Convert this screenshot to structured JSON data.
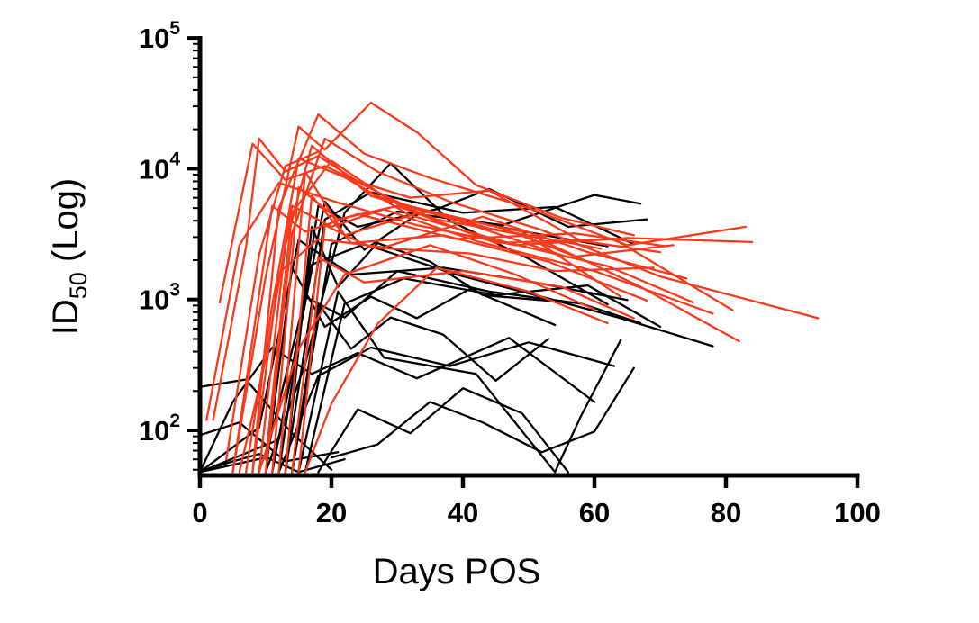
{
  "chart_data": {
    "type": "line",
    "title": "",
    "xlabel": "Days POS",
    "ylabel_parts": {
      "prefix": "ID",
      "sub": "50",
      "suffix": " (Log)"
    },
    "xlim": [
      0,
      100
    ],
    "ylim_log10": [
      1.656,
      5
    ],
    "x_ticks": [
      0,
      20,
      40,
      60,
      80,
      100
    ],
    "y_ticks": [
      {
        "value": 100,
        "base": "10",
        "exp": "2"
      },
      {
        "value": 1000,
        "base": "10",
        "exp": "3"
      },
      {
        "value": 10000,
        "base": "10",
        "exp": "4"
      },
      {
        "value": 100000,
        "base": "10",
        "exp": "5"
      }
    ],
    "y_minor_per_decade": [
      2,
      3,
      4,
      5,
      6,
      7,
      8,
      9
    ],
    "grid": false,
    "legend": "none",
    "colors": {
      "red": "#F83A1C",
      "black": "#000000"
    },
    "series": [
      {
        "group": "black",
        "points": [
          [
            10,
            48
          ],
          [
            16,
            320
          ],
          [
            22,
            4600
          ],
          [
            29,
            11000
          ],
          [
            38,
            4000
          ],
          [
            50,
            2050
          ],
          [
            62,
            920
          ]
        ]
      },
      {
        "group": "black",
        "points": [
          [
            12,
            48
          ],
          [
            18,
            5200
          ],
          [
            24,
            3600
          ],
          [
            36,
            4900
          ],
          [
            44,
            7000
          ],
          [
            56,
            3600
          ],
          [
            68,
            4100
          ]
        ]
      },
      {
        "group": "black",
        "points": [
          [
            13,
            48
          ],
          [
            19,
            4100
          ],
          [
            26,
            6600
          ],
          [
            40,
            4600
          ],
          [
            54,
            5100
          ],
          [
            66,
            2650
          ]
        ]
      },
      {
        "group": "black",
        "points": [
          [
            14,
            48
          ],
          [
            20,
            2650
          ],
          [
            30,
            4700
          ],
          [
            46,
            3700
          ],
          [
            60,
            6300
          ],
          [
            67,
            5400
          ]
        ]
      },
      {
        "group": "black",
        "points": [
          [
            11,
            48
          ],
          [
            17,
            1850
          ],
          [
            25,
            2650
          ],
          [
            39,
            1550
          ],
          [
            52,
            1050
          ],
          [
            64,
            720
          ],
          [
            78,
            440
          ]
        ]
      },
      {
        "group": "black",
        "points": [
          [
            0,
            48
          ],
          [
            9,
            105
          ],
          [
            15,
            2850
          ],
          [
            23,
            1550
          ],
          [
            37,
            1750
          ],
          [
            51,
            1350
          ],
          [
            65,
            990
          ]
        ]
      },
      {
        "group": "black",
        "points": [
          [
            16,
            48
          ],
          [
            22,
            930
          ],
          [
            31,
            1450
          ],
          [
            45,
            1080
          ],
          [
            59,
            1280
          ],
          [
            70,
            620
          ]
        ]
      },
      {
        "group": "black",
        "points": [
          [
            0,
            215
          ],
          [
            7,
            245
          ],
          [
            14,
            95
          ],
          [
            20,
            50
          ]
        ]
      },
      {
        "group": "black",
        "points": [
          [
            0,
            48
          ],
          [
            5,
            165
          ],
          [
            11,
            430
          ],
          [
            17,
            270
          ],
          [
            24,
            390
          ],
          [
            33,
            250
          ],
          [
            47,
            510
          ],
          [
            60,
            165
          ]
        ]
      },
      {
        "group": "black",
        "points": [
          [
            12,
            48
          ],
          [
            18,
            260
          ],
          [
            26,
            430
          ],
          [
            38,
            310
          ],
          [
            50,
            470
          ],
          [
            63,
            310
          ]
        ]
      },
      {
        "group": "black",
        "points": [
          [
            15,
            48
          ],
          [
            21,
            1150
          ],
          [
            28,
            360
          ],
          [
            42,
            270
          ],
          [
            54,
            48
          ],
          [
            58,
            130
          ],
          [
            64,
            490
          ]
        ]
      },
      {
        "group": "black",
        "points": [
          [
            0,
            48
          ],
          [
            10,
            62
          ],
          [
            16,
            1050
          ],
          [
            22,
            730
          ],
          [
            30,
            1650
          ],
          [
            44,
            1150
          ],
          [
            58,
            930
          ],
          [
            67,
            660
          ]
        ]
      },
      {
        "group": "black",
        "points": [
          [
            18,
            48
          ],
          [
            24,
            145
          ],
          [
            32,
            95
          ],
          [
            40,
            210
          ],
          [
            49,
            135
          ],
          [
            56,
            48
          ]
        ]
      },
      {
        "group": "black",
        "points": [
          [
            0,
            48
          ],
          [
            12,
            85
          ],
          [
            19,
            5600
          ],
          [
            25,
            2400
          ],
          [
            34,
            4800
          ],
          [
            48,
            3400
          ],
          [
            62,
            2550
          ]
        ]
      },
      {
        "group": "black",
        "points": [
          [
            13,
            48
          ],
          [
            17,
            3600
          ],
          [
            21,
            1250
          ],
          [
            27,
            2700
          ],
          [
            35,
            1950
          ],
          [
            43,
            1080
          ],
          [
            55,
            960
          ]
        ]
      },
      {
        "group": "black",
        "points": [
          [
            20,
            62
          ],
          [
            27,
            78
          ],
          [
            35,
            165
          ],
          [
            43,
            115
          ],
          [
            52,
            68
          ],
          [
            60,
            98
          ],
          [
            66,
            300
          ]
        ]
      },
      {
        "group": "black",
        "points": [
          [
            0,
            92
          ],
          [
            6,
            115
          ],
          [
            13,
            58
          ],
          [
            21,
            68
          ]
        ]
      },
      {
        "group": "black",
        "points": [
          [
            14,
            48
          ],
          [
            18,
            930
          ],
          [
            23,
            420
          ],
          [
            29,
            730
          ],
          [
            37,
            540
          ],
          [
            45,
            240
          ],
          [
            53,
            500
          ]
        ]
      },
      {
        "group": "black",
        "points": [
          [
            10,
            48
          ],
          [
            14,
            1750
          ],
          [
            19,
            620
          ],
          [
            26,
            1050
          ],
          [
            33,
            720
          ],
          [
            41,
            1200
          ],
          [
            54,
            640
          ]
        ]
      },
      {
        "group": "black",
        "points": [
          [
            0,
            48
          ],
          [
            4,
            56
          ],
          [
            9,
            66
          ],
          [
            15,
            48
          ],
          [
            22,
            60
          ]
        ]
      },
      {
        "group": "red",
        "points": [
          [
            2,
            120
          ],
          [
            7,
            2500
          ],
          [
            9,
            17000
          ],
          [
            13,
            9500
          ],
          [
            18,
            12500
          ],
          [
            24,
            8000
          ],
          [
            32,
            6000
          ],
          [
            44,
            6800
          ],
          [
            58,
            2800
          ],
          [
            70,
            2300
          ]
        ]
      },
      {
        "group": "red",
        "points": [
          [
            5,
            48
          ],
          [
            10,
            1500
          ],
          [
            15,
            21000
          ],
          [
            19,
            14000
          ],
          [
            26,
            32000
          ],
          [
            33,
            19000
          ],
          [
            42,
            7500
          ],
          [
            55,
            4200
          ],
          [
            66,
            3100
          ]
        ]
      },
      {
        "group": "red",
        "points": [
          [
            8,
            48
          ],
          [
            12,
            5000
          ],
          [
            18,
            26000
          ],
          [
            25,
            13000
          ],
          [
            35,
            8500
          ],
          [
            50,
            5000
          ],
          [
            65,
            2600
          ],
          [
            83,
            3600
          ]
        ]
      },
      {
        "group": "red",
        "points": [
          [
            10,
            48
          ],
          [
            14,
            3200
          ],
          [
            19,
            17000
          ],
          [
            27,
            9500
          ],
          [
            38,
            5600
          ],
          [
            52,
            3400
          ],
          [
            70,
            1500
          ],
          [
            94,
            720
          ]
        ]
      },
      {
        "group": "red",
        "points": [
          [
            7,
            48
          ],
          [
            11,
            900
          ],
          [
            15,
            12000
          ],
          [
            22,
            8600
          ],
          [
            32,
            4400
          ],
          [
            47,
            2700
          ],
          [
            62,
            1800
          ],
          [
            75,
            950
          ]
        ]
      },
      {
        "group": "red",
        "points": [
          [
            9,
            48
          ],
          [
            13,
            2600
          ],
          [
            17,
            15000
          ],
          [
            25,
            6800
          ],
          [
            36,
            4100
          ],
          [
            51,
            3000
          ],
          [
            67,
            1250
          ],
          [
            82,
            480
          ]
        ]
      },
      {
        "group": "red",
        "points": [
          [
            6,
            48
          ],
          [
            10,
            350
          ],
          [
            14,
            5200
          ],
          [
            20,
            3600
          ],
          [
            28,
            4900
          ],
          [
            42,
            2800
          ],
          [
            60,
            1650
          ],
          [
            78,
            780
          ]
        ]
      },
      {
        "group": "red",
        "points": [
          [
            11,
            48
          ],
          [
            15,
            7200
          ],
          [
            21,
            4100
          ],
          [
            30,
            5200
          ],
          [
            45,
            2700
          ],
          [
            63,
            2900
          ],
          [
            81,
            830
          ]
        ]
      },
      {
        "group": "red",
        "points": [
          [
            4,
            60
          ],
          [
            9,
            2200
          ],
          [
            13,
            10500
          ],
          [
            18,
            13500
          ],
          [
            26,
            6200
          ],
          [
            40,
            3900
          ],
          [
            56,
            2100
          ],
          [
            72,
            2600
          ]
        ]
      },
      {
        "group": "red",
        "points": [
          [
            12,
            48
          ],
          [
            16,
            9500
          ],
          [
            22,
            3100
          ],
          [
            34,
            4700
          ],
          [
            49,
            3300
          ],
          [
            64,
            1050
          ]
        ]
      },
      {
        "group": "red",
        "points": [
          [
            8,
            48
          ],
          [
            12,
            1600
          ],
          [
            18,
            2900
          ],
          [
            28,
            2500
          ],
          [
            43,
            4300
          ],
          [
            59,
            2300
          ],
          [
            74,
            1450
          ]
        ]
      },
      {
        "group": "red",
        "points": [
          [
            10,
            60
          ],
          [
            14,
            4600
          ],
          [
            20,
            11500
          ],
          [
            29,
            5700
          ],
          [
            44,
            3500
          ],
          [
            61,
            2450
          ]
        ]
      },
      {
        "group": "red",
        "points": [
          [
            13,
            48
          ],
          [
            17,
            6200
          ],
          [
            23,
            2700
          ],
          [
            37,
            3100
          ],
          [
            53,
            1950
          ],
          [
            68,
            980
          ]
        ]
      },
      {
        "group": "red",
        "points": [
          [
            5,
            48
          ],
          [
            11,
            5200
          ],
          [
            16,
            3300
          ],
          [
            24,
            4500
          ],
          [
            39,
            2900
          ],
          [
            57,
            3200
          ],
          [
            71,
            2550
          ]
        ]
      },
      {
        "group": "red",
        "points": [
          [
            14,
            48
          ],
          [
            18,
            2100
          ],
          [
            25,
            1350
          ],
          [
            40,
            1650
          ],
          [
            55,
            1250
          ],
          [
            66,
            720
          ]
        ]
      },
      {
        "group": "red",
        "points": [
          [
            9,
            48
          ],
          [
            15,
            420
          ],
          [
            22,
            1550
          ],
          [
            35,
            2600
          ],
          [
            48,
            1550
          ],
          [
            60,
            840
          ]
        ]
      },
      {
        "group": "red",
        "points": [
          [
            16,
            48
          ],
          [
            20,
            160
          ],
          [
            27,
            650
          ],
          [
            36,
            1750
          ],
          [
            50,
            1150
          ],
          [
            62,
            660
          ]
        ]
      },
      {
        "group": "red",
        "points": [
          [
            3,
            950
          ],
          [
            8,
            15500
          ],
          [
            13,
            8200
          ],
          [
            19,
            10500
          ],
          [
            31,
            5300
          ],
          [
            46,
            3500
          ],
          [
            58,
            2050
          ]
        ]
      },
      {
        "group": "red",
        "points": [
          [
            1,
            120
          ],
          [
            6,
            2600
          ],
          [
            12,
            7800
          ],
          [
            21,
            5500
          ],
          [
            33,
            3700
          ],
          [
            48,
            2600
          ],
          [
            65,
            2950
          ],
          [
            84,
            2750
          ]
        ]
      },
      {
        "group": "red",
        "points": [
          [
            15,
            48
          ],
          [
            19,
            3700
          ],
          [
            26,
            2500
          ],
          [
            41,
            2250
          ],
          [
            54,
            1650
          ],
          [
            69,
            1750
          ]
        ]
      }
    ]
  }
}
